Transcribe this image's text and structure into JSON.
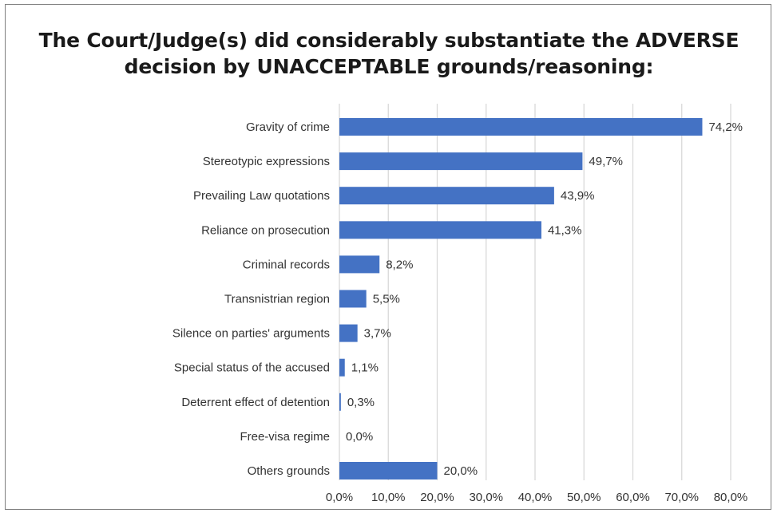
{
  "chart_data": {
    "type": "bar",
    "orientation": "horizontal",
    "title": "The Court/Judge(s) did considerably substantiate the ADVERSE decision by UNACCEPTABLE grounds/reasoning:",
    "categories": [
      "Gravity of crime",
      "Stereotypic expressions",
      "Prevailing Law quotations",
      "Reliance on prosecution",
      "Criminal records",
      "Transnistrian region",
      "Silence on parties' arguments",
      "Special status of the accused",
      "Deterrent effect of detention",
      "Free-visa regime",
      "Others grounds"
    ],
    "values": [
      74.2,
      49.7,
      43.9,
      41.3,
      8.2,
      5.5,
      3.7,
      1.1,
      0.3,
      0.0,
      20.0
    ],
    "data_labels": [
      "74,2%",
      "49,7%",
      "43,9%",
      "41,3%",
      "8,2%",
      "5,5%",
      "3,7%",
      "1,1%",
      "0,3%",
      "0,0%",
      "20,0%"
    ],
    "x_ticks": [
      0,
      10,
      20,
      30,
      40,
      50,
      60,
      70,
      80
    ],
    "x_tick_labels": [
      "0,0%",
      "10,0%",
      "20,0%",
      "30,0%",
      "40,0%",
      "50,0%",
      "60,0%",
      "70,0%",
      "80,0%"
    ],
    "xlim": [
      0,
      80
    ],
    "xlabel": "",
    "ylabel": "",
    "grid": true,
    "legend": "none",
    "bar_color": "#4472c4",
    "grid_color": "#d9d9d9"
  }
}
